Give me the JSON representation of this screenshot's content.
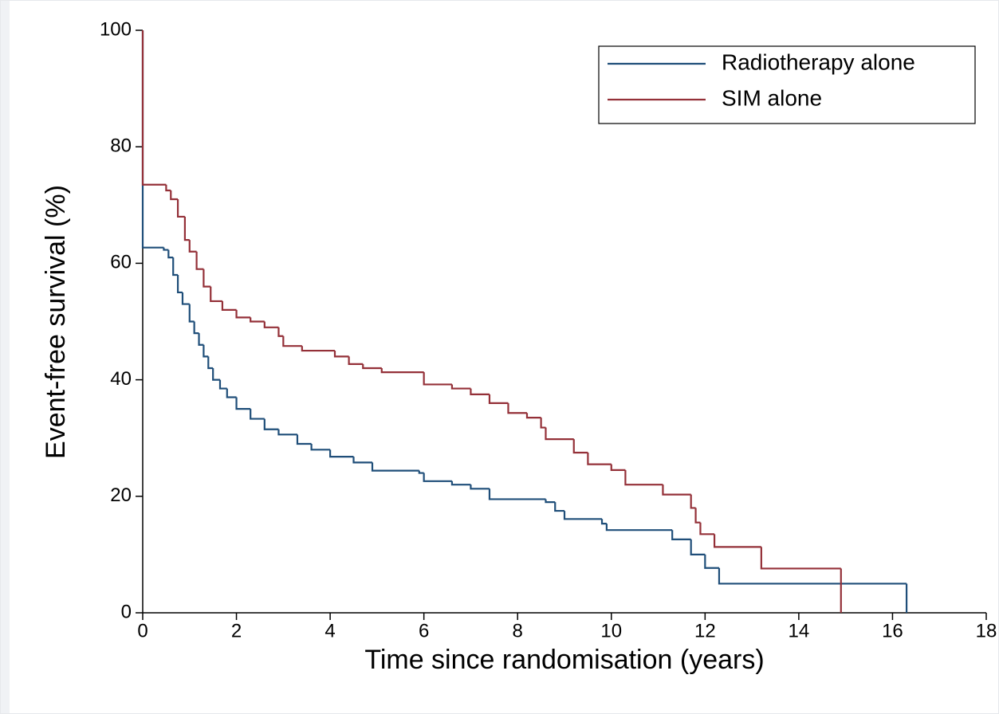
{
  "chart_data": {
    "type": "step",
    "x_label": "Time since randomisation (years)",
    "y_label": "Event-free survival (%)",
    "xlim": [
      0,
      18
    ],
    "xticks": [
      0,
      2,
      4,
      6,
      8,
      10,
      12,
      14,
      16,
      18
    ],
    "ylim": [
      0,
      100
    ],
    "yticks": [
      0,
      20,
      40,
      60,
      80,
      100
    ],
    "legend": "top-right",
    "series": [
      {
        "name": "Radiotherapy alone",
        "color": "#1f4e79",
        "x": [
          0,
          0,
          0.45,
          0.55,
          0.65,
          0.75,
          0.85,
          1.0,
          1.1,
          1.2,
          1.3,
          1.4,
          1.5,
          1.65,
          1.8,
          2.0,
          2.3,
          2.6,
          2.9,
          3.3,
          3.6,
          4.0,
          4.5,
          4.9,
          5.9,
          6.0,
          6.6,
          7.0,
          7.4,
          8.6,
          8.8,
          9.0,
          9.8,
          9.9,
          11.3,
          11.7,
          12.0,
          12.3,
          16.3
        ],
        "values": [
          100,
          62.7,
          62.3,
          61,
          58,
          55,
          53,
          50,
          48,
          46,
          44,
          42,
          40,
          38.5,
          37,
          35,
          33.3,
          31.5,
          30.6,
          29,
          28,
          26.8,
          25.8,
          24.4,
          24,
          22.6,
          22,
          21.3,
          19.5,
          19,
          17.5,
          16.1,
          15.3,
          14.2,
          12.6,
          10,
          7.7,
          5,
          0
        ]
      },
      {
        "name": "SIM alone",
        "color": "#943038",
        "x": [
          0,
          0,
          0.5,
          0.6,
          0.75,
          0.9,
          1.0,
          1.15,
          1.3,
          1.45,
          1.7,
          2.0,
          2.3,
          2.6,
          2.9,
          3.0,
          3.4,
          4.1,
          4.4,
          4.7,
          5.1,
          6.0,
          6.6,
          7.0,
          7.4,
          7.8,
          8.2,
          8.5,
          8.6,
          9.2,
          9.5,
          10.0,
          10.3,
          11.1,
          11.7,
          11.8,
          11.9,
          12.2,
          13.2,
          14.9
        ],
        "values": [
          100,
          73.5,
          72.5,
          71,
          68,
          64,
          62,
          59,
          56,
          53.5,
          52,
          50.7,
          50,
          49,
          47.5,
          45.8,
          45,
          44,
          42.7,
          42,
          41.3,
          39.2,
          38.5,
          37.5,
          36,
          34.3,
          33.5,
          31.8,
          29.8,
          27.5,
          25.5,
          24.5,
          22,
          20.3,
          18,
          15.5,
          13.5,
          11.3,
          7.6,
          0
        ]
      }
    ]
  }
}
